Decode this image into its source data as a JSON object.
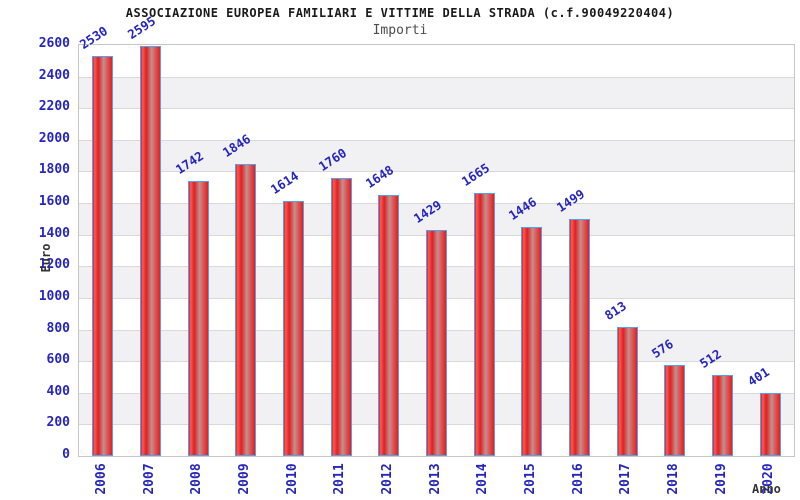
{
  "chart_data": {
    "type": "bar",
    "title": "ASSOCIAZIONE EUROPEA FAMILIARI E VITTIME DELLA STRADA (c.f.90049220404)",
    "subtitle": "Importi",
    "xlabel": "Anno",
    "ylabel": "Euro",
    "categories": [
      "2006",
      "2007",
      "2008",
      "2009",
      "2010",
      "2011",
      "2012",
      "2013",
      "2014",
      "2015",
      "2016",
      "2017",
      "2018",
      "2019",
      "2020"
    ],
    "values": [
      2530,
      2595,
      1742,
      1846,
      1614,
      1760,
      1648,
      1429,
      1665,
      1446,
      1499,
      813,
      576,
      512,
      401
    ],
    "ylim": [
      0,
      2600
    ],
    "ytick_step": 200,
    "legend": "none",
    "grid": "horizontal gridlines every 200 with alternating white and light-gray bands",
    "value_labels": "above each bar, rotated, blue",
    "colors": {
      "bar_fill_edge": "#e61e1e",
      "bar_fill_mid": "#c29090",
      "bar_border": "#55a0ec",
      "value_label": "#2626bd",
      "tick_label": "#2626bd",
      "axis_title": "#333333",
      "grid_line": "#d9d9d9",
      "band_alt": "#f1f1f3",
      "plot_border": "#c6c6c6",
      "title": "#1a1a1a",
      "subtitle": "#4d4d4d"
    }
  }
}
